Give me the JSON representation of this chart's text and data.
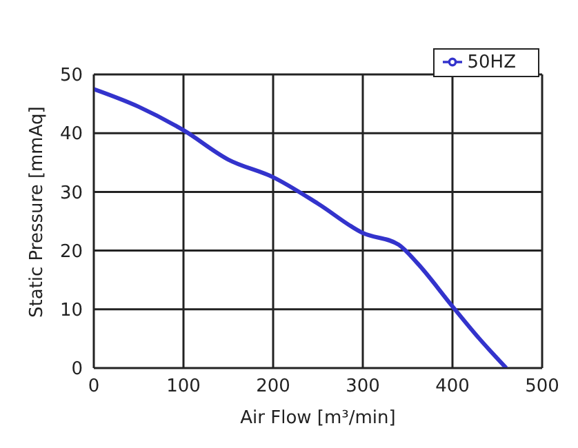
{
  "chart_data": {
    "type": "line",
    "xlabel": "Air Flow [m³/min]",
    "ylabel": "Static Pressure [mmAq]",
    "xlim": [
      0,
      500
    ],
    "xticks": [
      0,
      100,
      200,
      300,
      400,
      500
    ],
    "ylim": [
      0,
      50
    ],
    "yticks": [
      0,
      10,
      20,
      30,
      40,
      50
    ],
    "grid": true,
    "legend": "top right",
    "marker": "none",
    "line_style": "solid",
    "series": [
      {
        "name": "50HZ",
        "color": "#3333cc",
        "x": [
          0,
          50,
          100,
          150,
          200,
          250,
          300,
          340,
          360,
          400,
          430,
          460
        ],
        "values": [
          47.5,
          44.5,
          40.5,
          35.5,
          32.5,
          28,
          23,
          21,
          18,
          10.5,
          5,
          0
        ]
      }
    ]
  }
}
